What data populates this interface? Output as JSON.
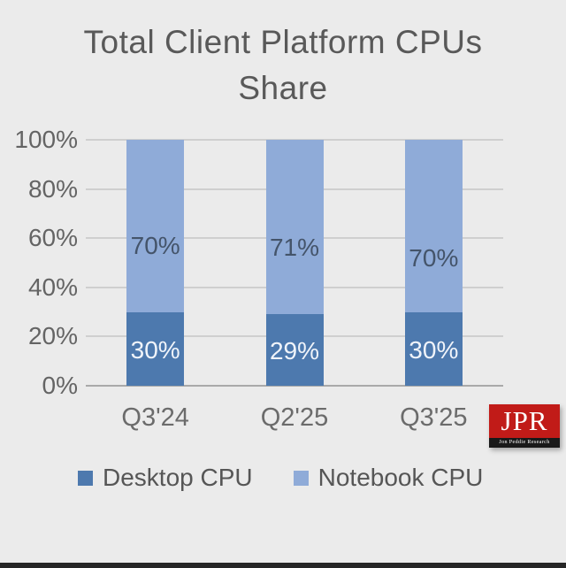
{
  "title": {
    "line1": "Total Client Platform CPUs",
    "line2": "Share"
  },
  "logo": {
    "text": "JPR",
    "subtext": "Jon Peddie Research",
    "red": "#c11b18",
    "strip_black": "#191919"
  },
  "colors": {
    "background": "#ebebeb",
    "title_gray": "#595959",
    "axis_gray": "#646464",
    "gridline": "#cfcfcf",
    "baseline": "#a9a9a9",
    "bottom_bar": "#262626"
  },
  "chart_data": {
    "type": "bar",
    "stacked": true,
    "title": "Total Client Platform CPUs Share",
    "categories": [
      "Q3'24",
      "Q2'25",
      "Q3'25"
    ],
    "series": [
      {
        "name": "Desktop CPU",
        "values": [
          30,
          29,
          30
        ],
        "labels": [
          "30%",
          "29%",
          "30%"
        ],
        "color": "#4d79ae",
        "label_color": "#f0f4fa",
        "label_fracs": [
          0.52,
          0.52,
          0.52
        ]
      },
      {
        "name": "Notebook CPU",
        "values": [
          70,
          71,
          70
        ],
        "labels": [
          "70%",
          "71%",
          "70%"
        ],
        "color": "#8fabd8",
        "label_color": "#44546a",
        "label_fracs": [
          0.615,
          0.62,
          0.69
        ]
      }
    ],
    "y_ticks": [
      "0%",
      "20%",
      "40%",
      "60%",
      "80%",
      "100%"
    ],
    "ylim": [
      0,
      100
    ],
    "grid": true,
    "legend_position": "bottom",
    "legend_entries": [
      "Desktop CPU",
      "Notebook CPU"
    ]
  }
}
